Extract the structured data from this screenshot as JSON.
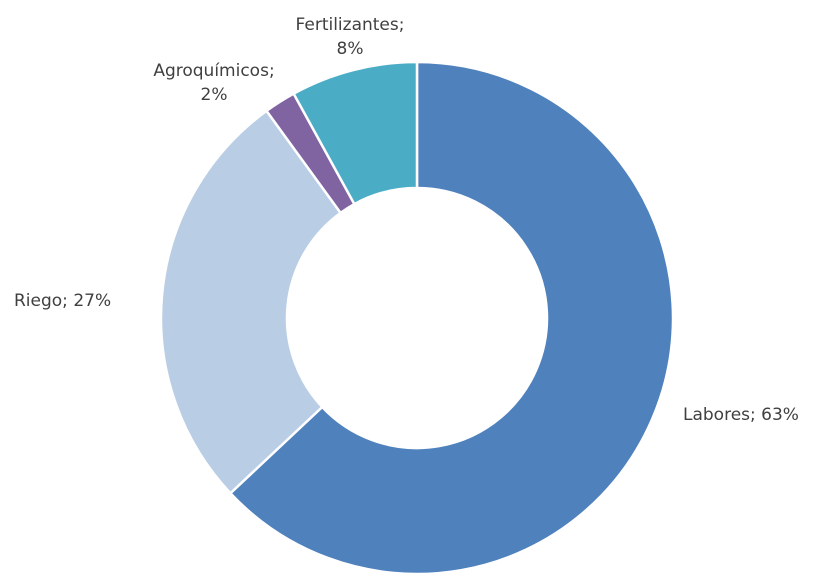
{
  "chart_data": {
    "type": "donut",
    "title": "",
    "series": [
      {
        "categories": [
          "Labores",
          "Fertilizantes",
          "Agroquímicos",
          "Riego"
        ],
        "values": [
          63,
          8,
          2,
          27
        ],
        "colors": [
          "#4f81bd",
          "#4bacc6",
          "#8064a2",
          "#b9cde5"
        ]
      }
    ],
    "labels": [
      {
        "category": "Labores",
        "lines": [
          "Labores; 63%"
        ]
      },
      {
        "category": "Fertilizantes",
        "lines": [
          "Fertilizantes;",
          "8%"
        ]
      },
      {
        "category": "Agroquímicos",
        "lines": [
          "Agroquímicos;",
          "2%"
        ]
      },
      {
        "category": "Riego",
        "lines": [
          "Riego; 27%"
        ]
      }
    ],
    "legend": "none"
  }
}
